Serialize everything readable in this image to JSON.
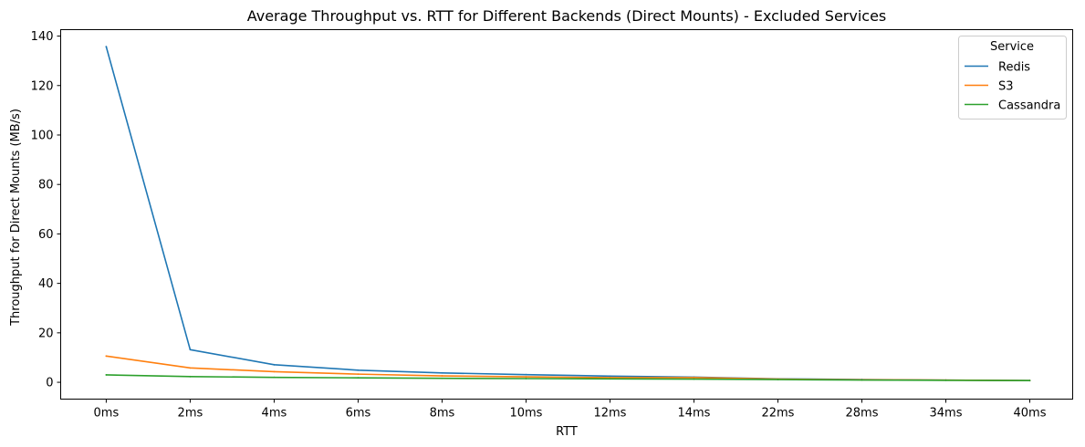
{
  "chart_data": {
    "type": "line",
    "title": "Average Throughput vs. RTT for Different Backends (Direct Mounts) - Excluded Services",
    "xlabel": "RTT",
    "ylabel": "Throughput for Direct Mounts (MB/s)",
    "categories": [
      "0ms",
      "2ms",
      "4ms",
      "6ms",
      "8ms",
      "10ms",
      "12ms",
      "14ms",
      "22ms",
      "28ms",
      "34ms",
      "40ms"
    ],
    "ylim": [
      -6.8,
      142.6
    ],
    "yticks": [
      0,
      20,
      40,
      60,
      80,
      100,
      120,
      140
    ],
    "grid": false,
    "legend": {
      "title": "Service",
      "position": "top-right"
    },
    "series": [
      {
        "name": "Redis",
        "color": "#1f77b4",
        "values": [
          135.7,
          13.2,
          7.1,
          4.9,
          3.8,
          3.1,
          2.5,
          2.1,
          1.4,
          1.1,
          0.9,
          0.7
        ]
      },
      {
        "name": "S3",
        "color": "#ff7f0e",
        "values": [
          10.6,
          5.8,
          4.3,
          3.3,
          2.6,
          2.2,
          1.9,
          1.9,
          1.3,
          1.0,
          0.9,
          0.7
        ]
      },
      {
        "name": "Cassandra",
        "color": "#2ca02c",
        "values": [
          3.0,
          2.3,
          2.0,
          1.8,
          1.6,
          1.5,
          1.4,
          1.3,
          1.1,
          0.9,
          0.8,
          0.7
        ]
      }
    ]
  }
}
